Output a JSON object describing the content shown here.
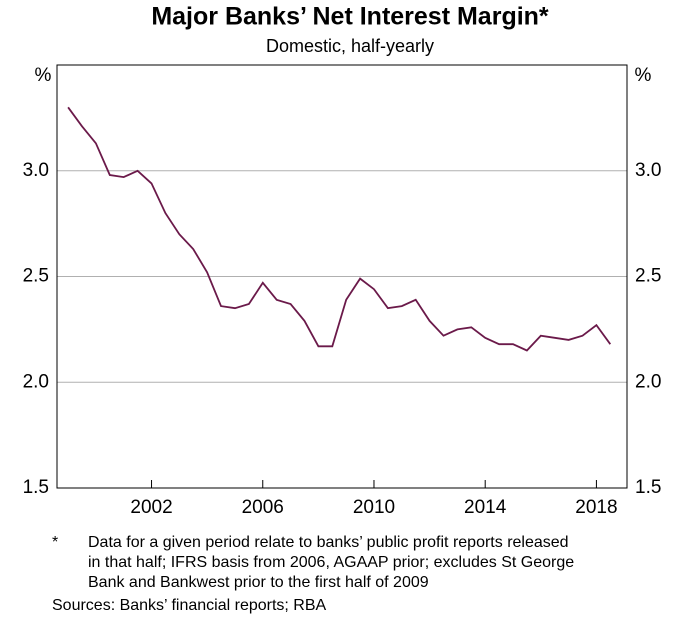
{
  "chart_data": {
    "type": "line",
    "title": "Major Banks’ Net Interest Margin*",
    "subtitle": "Domestic, half-yearly",
    "y_unit": "%",
    "x": [
      1999,
      1999.5,
      2000,
      2000.5,
      2001,
      2001.5,
      2002,
      2002.5,
      2003,
      2003.5,
      2004,
      2004.5,
      2005,
      2005.5,
      2006,
      2006.5,
      2007,
      2007.5,
      2008,
      2008.5,
      2009,
      2009.5,
      2010,
      2010.5,
      2011,
      2011.5,
      2012,
      2012.5,
      2013,
      2013.5,
      2014,
      2014.5,
      2015,
      2015.5,
      2016,
      2016.5,
      2017,
      2017.5,
      2018,
      2018.5
    ],
    "series": [
      {
        "name": "Net interest margin",
        "color": "#6b1a4a",
        "values": [
          3.3,
          3.21,
          3.13,
          2.98,
          2.97,
          3.0,
          2.94,
          2.8,
          2.7,
          2.63,
          2.52,
          2.36,
          2.35,
          2.37,
          2.47,
          2.39,
          2.37,
          2.29,
          2.17,
          2.17,
          2.39,
          2.49,
          2.44,
          2.35,
          2.36,
          2.39,
          2.29,
          2.22,
          2.25,
          2.26,
          2.21,
          2.18,
          2.18,
          2.15,
          2.22,
          2.21,
          2.2,
          2.22,
          2.27,
          2.18
        ]
      }
    ],
    "xlim": [
      1998.6,
      2019.1
    ],
    "xticks": [
      2002,
      2006,
      2010,
      2014,
      2018
    ],
    "ylim": [
      1.5,
      3.5
    ],
    "yticks": [
      1.5,
      {
        "value": 2,
        "label": "2.0"
      },
      2.5,
      {
        "value": 3,
        "label": "3.0"
      }
    ],
    "grid": true,
    "footnote_marker": "*",
    "footnote": [
      "Data for a given period relate to banks’ public profit reports released",
      "in that half; IFRS basis from 2006, AGAAP prior; excludes St George",
      "Bank and Bankwest prior to the first half of 2009"
    ],
    "source": "Sources: Banks’ financial reports; RBA"
  }
}
